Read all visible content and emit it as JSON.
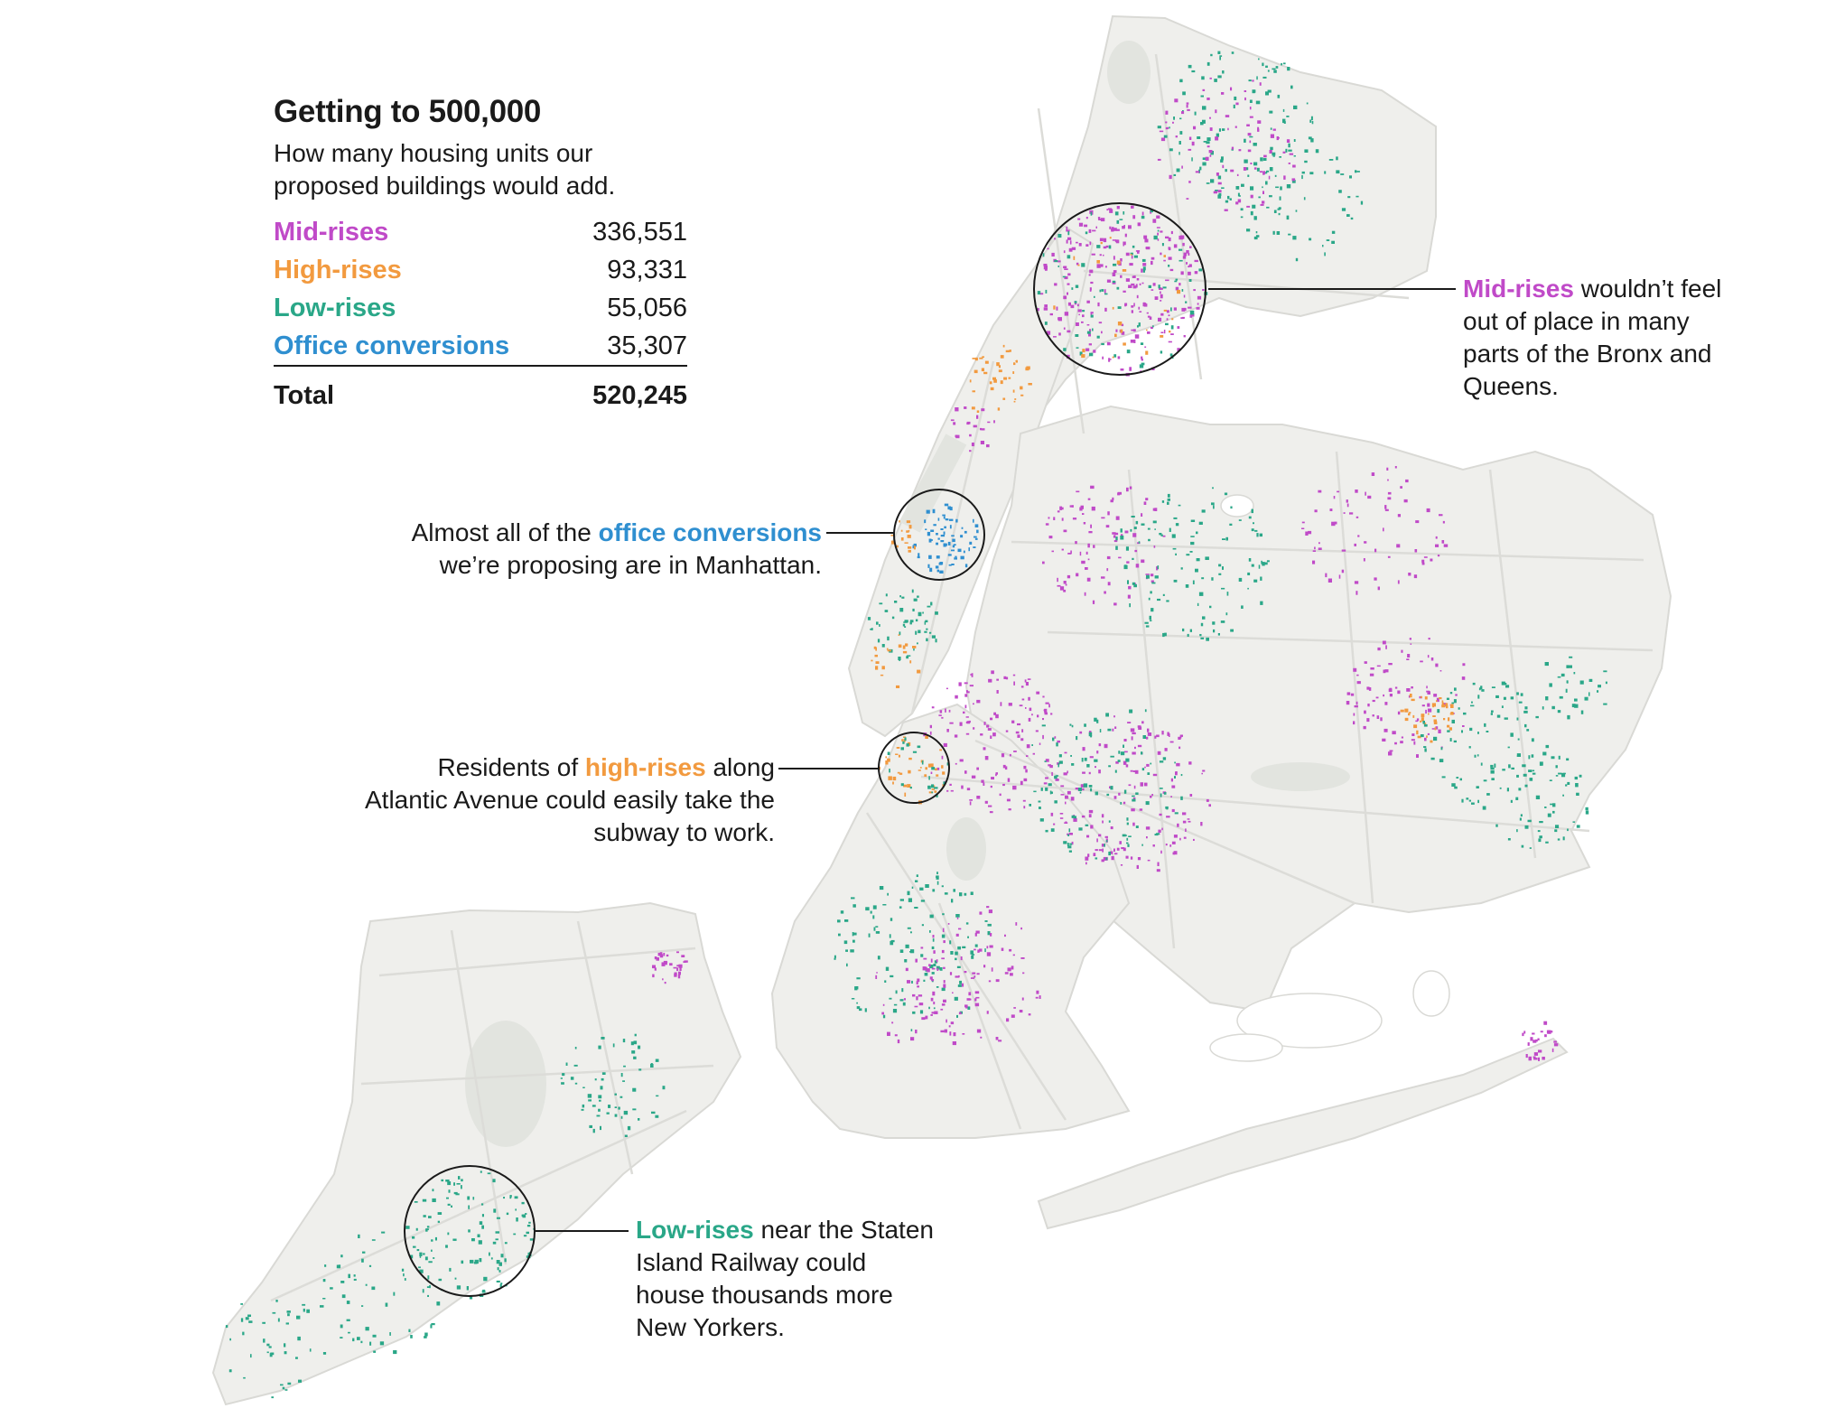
{
  "colors": {
    "mid_rises": "#c04ac8",
    "high_rises": "#f29a3f",
    "low_rises": "#2aa788",
    "office_conversions": "#2f8fd0",
    "land": "#efefec",
    "water": "#ffffff",
    "roads": "#dcdcd8",
    "parks": "#e2e4df"
  },
  "legend": {
    "title": "Getting to 500,000",
    "subtitle": "How many housing units our proposed buildings would add.",
    "rows": [
      {
        "label": "Mid-rises",
        "value": "336,551",
        "key": "mid"
      },
      {
        "label": "High-rises",
        "value": "93,331",
        "key": "high"
      },
      {
        "label": "Low-rises",
        "value": "55,056",
        "key": "low"
      },
      {
        "label": "Office conversions",
        "value": "35,307",
        "key": "off"
      }
    ],
    "total_label": "Total",
    "total_value": "520,245"
  },
  "annotations": {
    "bronx": {
      "highlight": "Mid-rises",
      "text": " wouldn’t feel out of place in many parts of the Bronx and Queens."
    },
    "manhattan": {
      "pre": "Almost all of the ",
      "highlight": "office conversions",
      "post": " we’re proposing are in Manhattan."
    },
    "brooklyn": {
      "pre": "Residents of ",
      "highlight": "high-rises",
      "post": " along Atlantic Avenue could easily take the subway to work."
    },
    "staten": {
      "highlight": "Low-rises",
      "text": " near the Staten Island Railway could house thousands more New Yorkers."
    }
  },
  "chart_data": {
    "type": "map",
    "title": "Getting to 500,000",
    "subtitle": "How many housing units our proposed buildings would add.",
    "series": [
      {
        "name": "Mid-rises",
        "value": 336551
      },
      {
        "name": "High-rises",
        "value": 93331
      },
      {
        "name": "Low-rises",
        "value": 55056
      },
      {
        "name": "Office conversions",
        "value": 35307
      }
    ],
    "total": 520245
  }
}
